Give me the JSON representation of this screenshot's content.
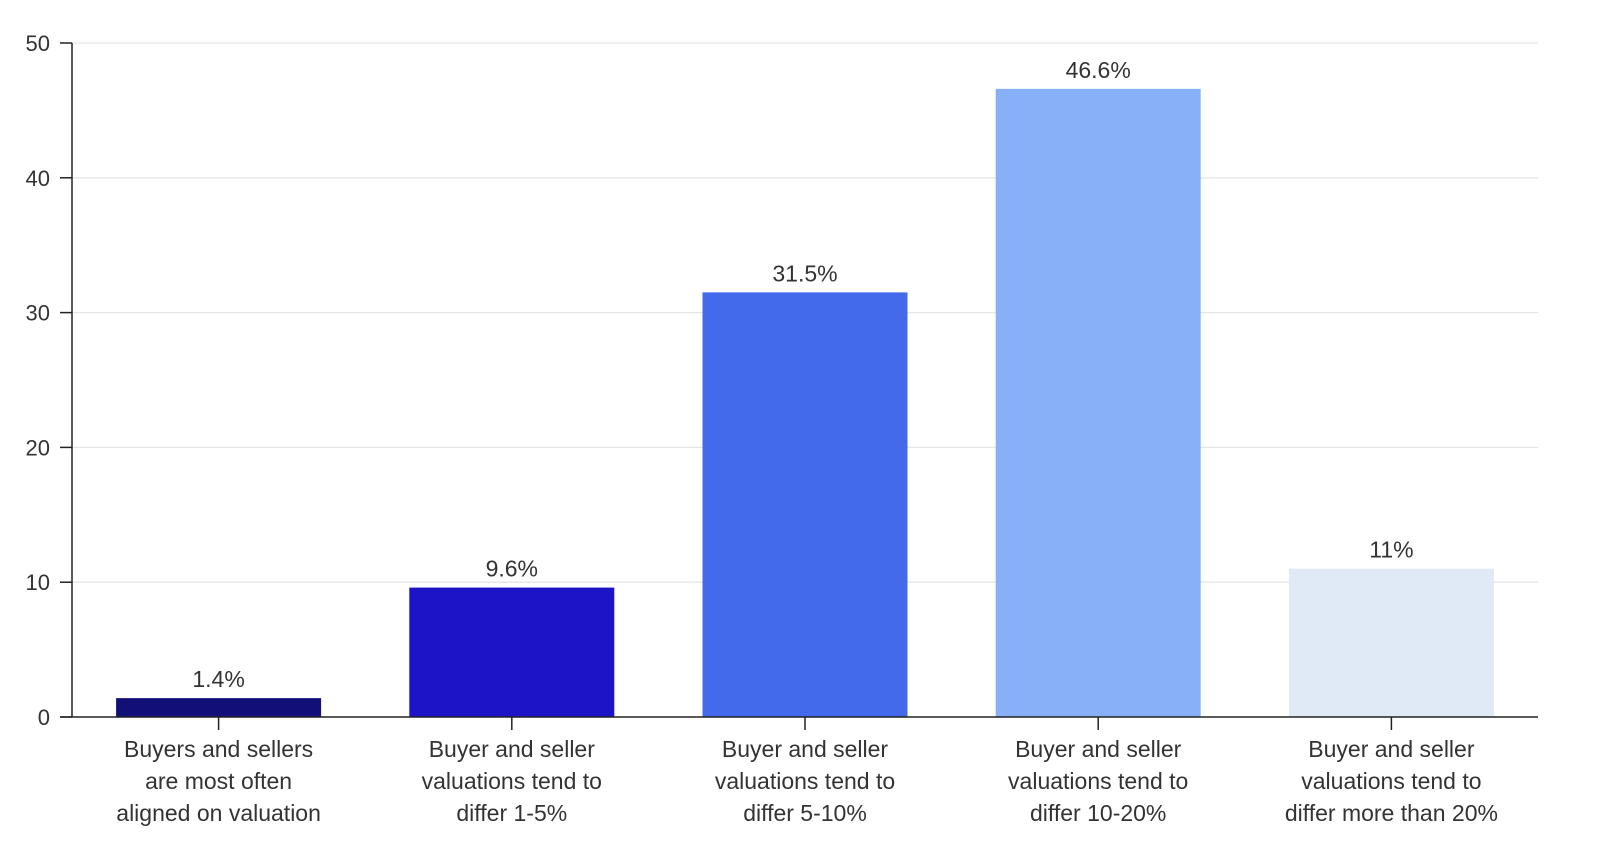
{
  "chart_data": {
    "type": "bar",
    "title": "",
    "xlabel": "",
    "ylabel": "",
    "ylim": [
      0,
      50
    ],
    "yticks": [
      0,
      10,
      20,
      30,
      40,
      50
    ],
    "ytick_labels": [
      "0",
      "10",
      "20",
      "30",
      "40",
      "50"
    ],
    "grid": true,
    "categories": [
      [
        "Buyers and sellers",
        "are most often",
        "aligned on valuation"
      ],
      [
        "Buyer and seller",
        "valuations tend to",
        "differ 1-5%"
      ],
      [
        "Buyer and seller",
        "valuations tend to",
        "differ 5-10%"
      ],
      [
        "Buyer and seller",
        "valuations tend to",
        "differ 10-20%"
      ],
      [
        "Buyer and seller",
        "valuations tend to",
        "differ more than 20%"
      ]
    ],
    "values": [
      1.4,
      9.6,
      31.5,
      46.6,
      11
    ],
    "data_labels": [
      "1.4%",
      "9.6%",
      "31.5%",
      "46.6%",
      "11%"
    ],
    "colors": [
      "#120f78",
      "#1d14c8",
      "#436aeb",
      "#87b0f8",
      "#e0eaf6"
    ],
    "axis_color": "#222222",
    "grid_color": "#e6e6e6",
    "text_color": "#333333"
  }
}
